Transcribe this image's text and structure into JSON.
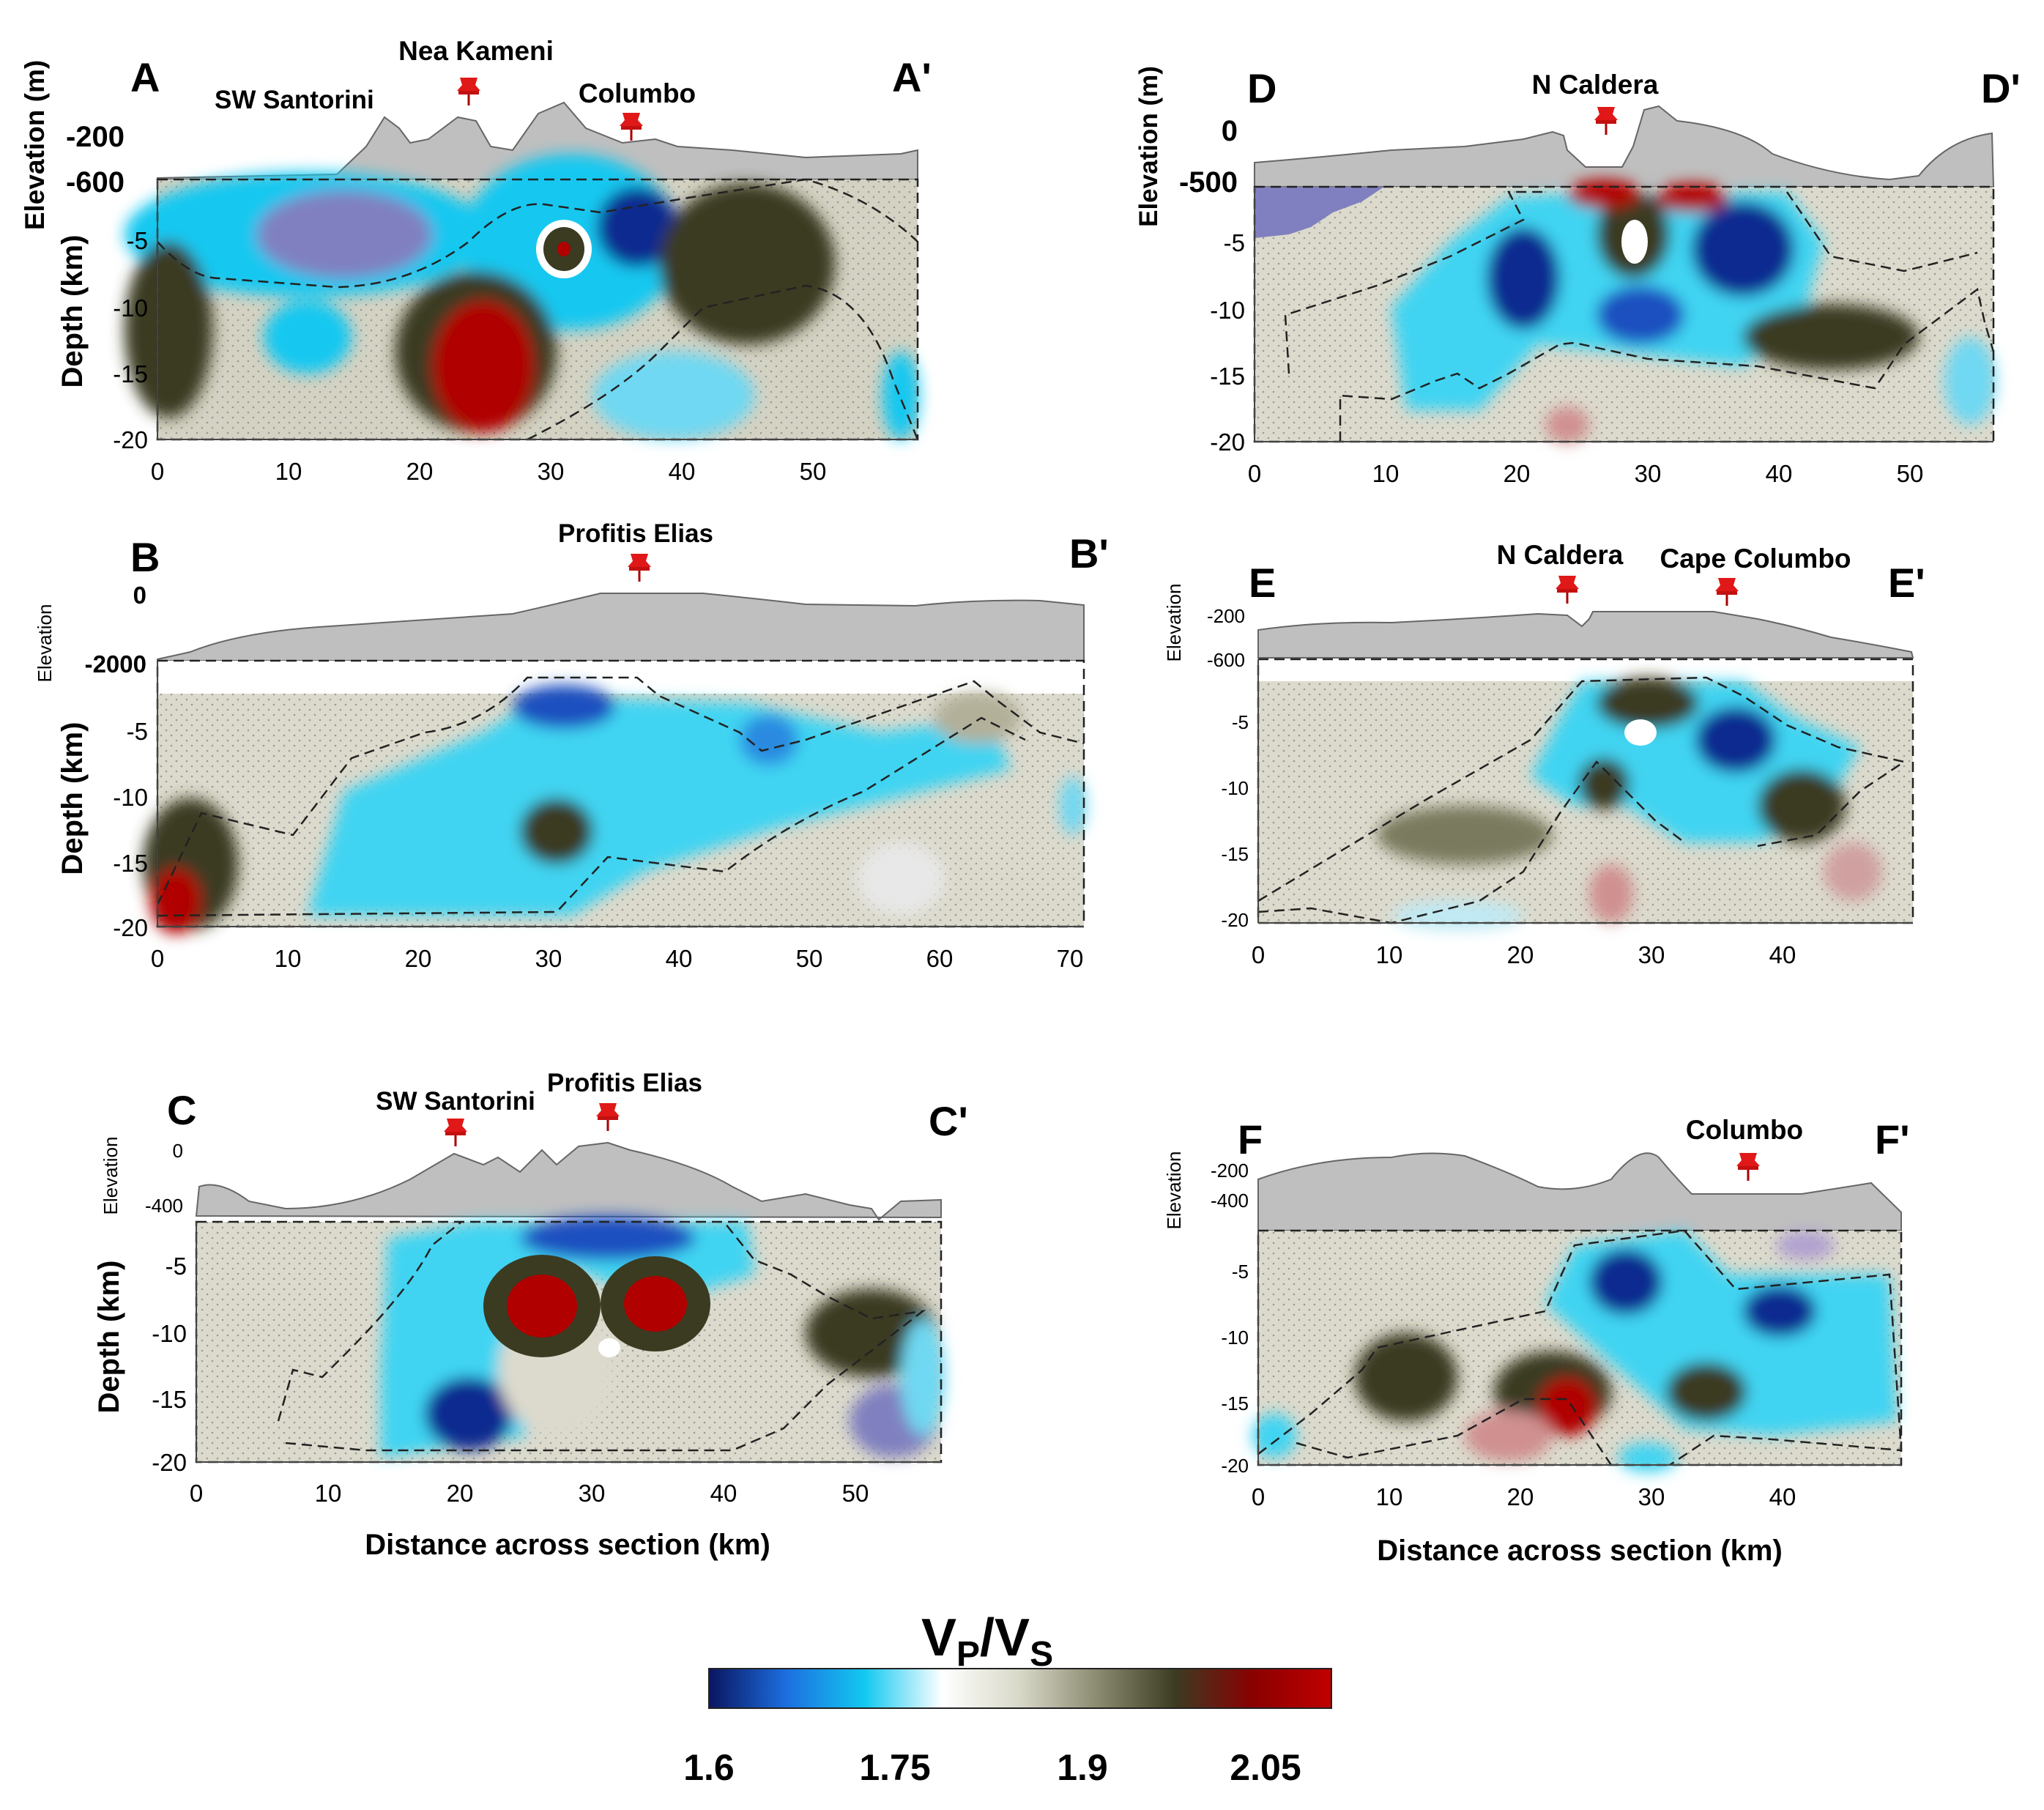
{
  "figure": {
    "colorbar": {
      "title_main": "V",
      "title_sub1": "P",
      "title_slash": "/V",
      "title_sub2": "S",
      "stops": [
        "#0a1560",
        "#1c6fe0",
        "#12c8f0",
        "#ffffff",
        "#d8d8c8",
        "#8a8a70",
        "#3b3b22",
        "#8b0000",
        "#c00000"
      ],
      "ticks": [
        "1.6",
        "1.75",
        "1.9",
        "2.05"
      ]
    },
    "xlabel_left": "Distance across section (km)",
    "xlabel_right": "Distance across section (km)"
  },
  "chart_data": [
    {
      "type": "heatmap",
      "panel": "A",
      "title_start": "A",
      "title_end": "A'",
      "elevation_label": "Elevation (m)",
      "elevation_ticks": [
        "-200",
        "-600"
      ],
      "ylabel": "Depth (km)",
      "depth_ticks": [
        "-5",
        "-10",
        "-15",
        "-20"
      ],
      "x_ticks": [
        "0",
        "10",
        "20",
        "30",
        "40",
        "50"
      ],
      "xlim": [
        0,
        58
      ],
      "ylim": [
        -20,
        0
      ],
      "markers": [
        {
          "label": "Nea Kameni",
          "x": 24
        },
        {
          "label": "Columbo",
          "x": 36
        }
      ],
      "labels": [
        {
          "text": "SW Santorini",
          "x": 10
        }
      ],
      "anomalies": [
        {
          "x": 20,
          "y": -5,
          "vpvs": 1.75
        },
        {
          "x": 25,
          "y": -15,
          "vpvs": 2.05
        },
        {
          "x": 31,
          "y": -5,
          "vpvs": 2.0
        },
        {
          "x": 38,
          "y": -4,
          "vpvs": 1.65
        },
        {
          "x": 47,
          "y": -7,
          "vpvs": 1.95
        }
      ]
    },
    {
      "type": "heatmap",
      "panel": "B",
      "title_start": "B",
      "title_end": "B'",
      "elevation_label": "Elevation",
      "elevation_ticks": [
        "0",
        "-2000"
      ],
      "ylabel": "Depth (km)",
      "depth_ticks": [
        "-5",
        "-10",
        "-15",
        "-20"
      ],
      "x_ticks": [
        "0",
        "10",
        "20",
        "30",
        "40",
        "50",
        "60",
        "70"
      ],
      "xlim": [
        0,
        72
      ],
      "ylim": [
        -20,
        0
      ],
      "markers": [
        {
          "label": "Profitis Elias",
          "x": 37
        }
      ],
      "labels": [],
      "anomalies": [
        {
          "x": 2,
          "y": -18,
          "vpvs": 2.05
        },
        {
          "x": 30,
          "y": -2,
          "vpvs": 1.65
        },
        {
          "x": 30,
          "y": -12,
          "vpvs": 1.95
        },
        {
          "x": 47,
          "y": -5,
          "vpvs": 1.7
        }
      ]
    },
    {
      "type": "heatmap",
      "panel": "C",
      "title_start": "C",
      "title_end": "C'",
      "elevation_label": "Elevation",
      "elevation_ticks": [
        "0",
        "-400"
      ],
      "ylabel": "Depth (km)",
      "depth_ticks": [
        "-5",
        "-10",
        "-15",
        "-20"
      ],
      "x_ticks": [
        "0",
        "10",
        "20",
        "30",
        "40",
        "50"
      ],
      "xlim": [
        0,
        57
      ],
      "ylim": [
        -20,
        0
      ],
      "markers": [
        {
          "label": "SW Santorini",
          "x": 20
        },
        {
          "label": "Profitis Elias",
          "x": 32
        }
      ],
      "labels": [],
      "anomalies": [
        {
          "x": 26,
          "y": -8,
          "vpvs": 2.08
        },
        {
          "x": 35,
          "y": -8,
          "vpvs": 2.08
        },
        {
          "x": 20,
          "y": -16,
          "vpvs": 1.65
        },
        {
          "x": 49,
          "y": -9,
          "vpvs": 1.95
        }
      ]
    },
    {
      "type": "heatmap",
      "panel": "D",
      "title_start": "D",
      "title_end": "D'",
      "elevation_label": "Elevation (m)",
      "elevation_ticks": [
        "0",
        "-500"
      ],
      "ylabel": "",
      "depth_ticks": [
        "-5",
        "-10",
        "-15",
        "-20"
      ],
      "x_ticks": [
        "0",
        "10",
        "20",
        "30",
        "40",
        "50"
      ],
      "xlim": [
        0,
        57
      ],
      "ylim": [
        -20,
        0
      ],
      "markers": [
        {
          "label": "N Caldera",
          "x": 27
        }
      ],
      "labels": [],
      "anomalies": [
        {
          "x": 20,
          "y": -7,
          "vpvs": 1.6
        },
        {
          "x": 37,
          "y": -5,
          "vpvs": 1.6
        },
        {
          "x": 28,
          "y": -5,
          "vpvs": 1.95
        },
        {
          "x": 33,
          "y": -1,
          "vpvs": 2.05
        }
      ]
    },
    {
      "type": "heatmap",
      "panel": "E",
      "title_start": "E",
      "title_end": "E'",
      "elevation_label": "Elevation",
      "elevation_ticks": [
        "-200",
        "-600"
      ],
      "ylabel": "",
      "depth_ticks": [
        "-5",
        "-10",
        "-15",
        "-20"
      ],
      "x_ticks": [
        "0",
        "10",
        "20",
        "30",
        "40"
      ],
      "xlim": [
        0,
        50
      ],
      "ylim": [
        -20,
        0
      ],
      "markers": [
        {
          "label": "N Caldera",
          "x": 24
        },
        {
          "label": "Cape Columbo",
          "x": 36
        }
      ],
      "labels": [],
      "anomalies": [
        {
          "x": 37,
          "y": -6,
          "vpvs": 1.6
        },
        {
          "x": 29,
          "y": -2,
          "vpvs": 1.95
        },
        {
          "x": 27,
          "y": -18,
          "vpvs": 2.0
        }
      ]
    },
    {
      "type": "heatmap",
      "panel": "F",
      "title_start": "F",
      "title_end": "F'",
      "elevation_label": "Elevation",
      "elevation_ticks": [
        "-200",
        "-400"
      ],
      "ylabel": "",
      "depth_ticks": [
        "-5",
        "-10",
        "-15",
        "-20"
      ],
      "x_ticks": [
        "0",
        "10",
        "20",
        "30",
        "40"
      ],
      "xlim": [
        0,
        49
      ],
      "ylim": [
        -20,
        0
      ],
      "markers": [
        {
          "label": "Columbo",
          "x": 38
        }
      ],
      "labels": [],
      "anomalies": [
        {
          "x": 27,
          "y": -5,
          "vpvs": 1.6
        },
        {
          "x": 39,
          "y": -6,
          "vpvs": 1.6
        },
        {
          "x": 23,
          "y": -15,
          "vpvs": 2.05
        },
        {
          "x": 10,
          "y": -12,
          "vpvs": 1.95
        }
      ]
    }
  ]
}
